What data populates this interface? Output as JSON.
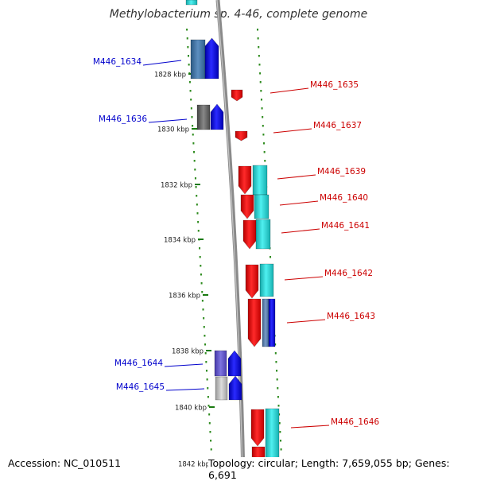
{
  "title": "Methylobacterium sp. 4-46, complete genome",
  "footer": {
    "accession": "Accession: NC_010511",
    "summary": "Topology: circular; Length: 7,659,055 bp; Genes: 6,691"
  },
  "axis": {
    "unit": "kbp",
    "ticks": [
      {
        "kbp": 1828,
        "label": "1828 kbp"
      },
      {
        "kbp": 1830,
        "label": "1830 kbp"
      },
      {
        "kbp": 1832,
        "label": "1832 kbp"
      },
      {
        "kbp": 1834,
        "label": "1834 kbp"
      },
      {
        "kbp": 1836,
        "label": "1836 kbp"
      },
      {
        "kbp": 1838,
        "label": "1838 kbp"
      },
      {
        "kbp": 1840,
        "label": "1840 kbp"
      },
      {
        "kbp": 1842,
        "label": "1842 kbp"
      }
    ]
  },
  "genes": [
    {
      "id": "M446_1634",
      "label": "M446_1634",
      "strand": "left"
    },
    {
      "id": "M446_1636",
      "label": "M446_1636",
      "strand": "left"
    },
    {
      "id": "M446_1635",
      "label": "M446_1635",
      "strand": "right"
    },
    {
      "id": "M446_1637",
      "label": "M446_1637",
      "strand": "right"
    },
    {
      "id": "M446_1639",
      "label": "M446_1639",
      "strand": "right"
    },
    {
      "id": "M446_1640",
      "label": "M446_1640",
      "strand": "right"
    },
    {
      "id": "M446_1641",
      "label": "M446_1641",
      "strand": "right"
    },
    {
      "id": "M446_1642",
      "label": "M446_1642",
      "strand": "right"
    },
    {
      "id": "M446_1643",
      "label": "M446_1643",
      "strand": "right"
    },
    {
      "id": "M446_1644",
      "label": "M446_1644",
      "strand": "left"
    },
    {
      "id": "M446_1645",
      "label": "M446_1645",
      "strand": "left"
    },
    {
      "id": "M446_1646",
      "label": "M446_1646",
      "strand": "right"
    }
  ],
  "colors": {
    "backbone": "#8a8a8a",
    "dots": "#2e8b1e",
    "left_label": "#0000cc",
    "right_label": "#cc0000",
    "gene_red": "#ee1111",
    "gene_blue": "#1515ee",
    "gene_cyan": "#22d4d4"
  }
}
